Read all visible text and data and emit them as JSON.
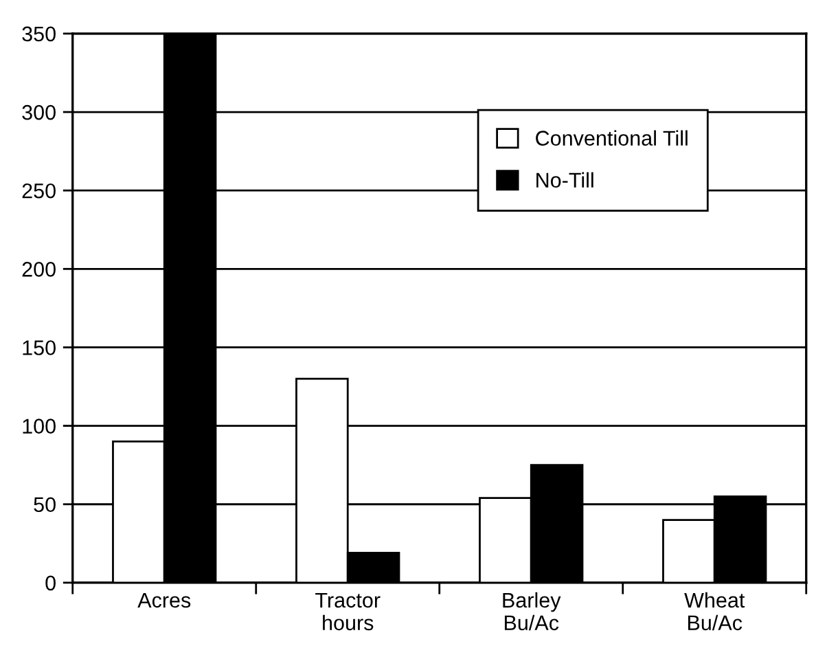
{
  "chart_data": {
    "type": "bar",
    "categories": [
      "Acres",
      "Tractor\nhours",
      "Barley\nBu/Ac",
      "Wheat\nBu/Ac"
    ],
    "series": [
      {
        "name": "Conventional Till",
        "color": "#ffffff",
        "values": [
          90,
          130,
          54,
          40
        ]
      },
      {
        "name": "No-Till",
        "color": "#000000",
        "values": [
          350,
          19,
          75,
          55
        ]
      }
    ],
    "ylim": [
      0,
      350
    ],
    "yticks": [
      0,
      50,
      100,
      150,
      200,
      250,
      300,
      350
    ],
    "grid": "y",
    "legend": "upper right"
  }
}
